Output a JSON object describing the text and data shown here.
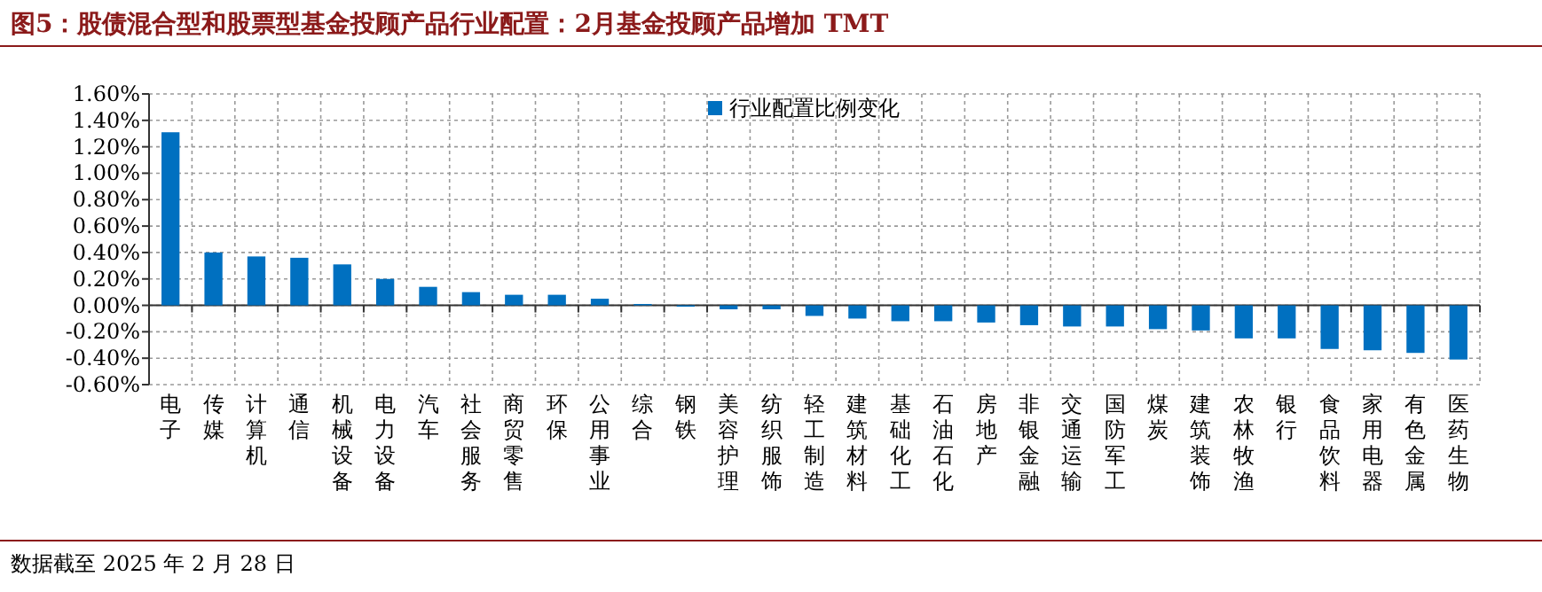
{
  "chart_data": {
    "type": "bar",
    "title": "图5：股债混合型和股票型基金投顾产品行业配置：2月基金投顾产品增加 TMT",
    "categories": [
      "电子",
      "传媒",
      "计算机",
      "通信",
      "机械设备",
      "电力设备",
      "汽车",
      "社会服务",
      "商贸零售",
      "环保",
      "公用事业",
      "综合",
      "钢铁",
      "美容护理",
      "纺织服饰",
      "轻工制造",
      "建筑材料",
      "基础化工",
      "石油石化",
      "房地产",
      "非银金融",
      "交通运输",
      "国防军工",
      "煤炭",
      "建筑装饰",
      "农林牧渔",
      "银行",
      "食品饮料",
      "家用电器",
      "有色金属",
      "医药生物"
    ],
    "series": [
      {
        "name": "行业配置比例变化",
        "color": "#0070c0",
        "values": [
          1.31,
          0.4,
          0.37,
          0.36,
          0.31,
          0.2,
          0.14,
          0.1,
          0.08,
          0.08,
          0.05,
          0.01,
          -0.01,
          -0.03,
          -0.03,
          -0.08,
          -0.1,
          -0.12,
          -0.12,
          -0.13,
          -0.15,
          -0.16,
          -0.16,
          -0.18,
          -0.19,
          -0.25,
          -0.25,
          -0.33,
          -0.34,
          -0.36,
          -0.41
        ]
      }
    ],
    "ylim": [
      -0.6,
      1.6
    ],
    "yticks": [
      {
        "value": -0.6,
        "label": "-0.60%"
      },
      {
        "value": -0.4,
        "label": "-0.40%"
      },
      {
        "value": -0.2,
        "label": "-0.20%"
      },
      {
        "value": 0,
        "label": "0.00%"
      },
      {
        "value": 0.2,
        "label": "0.20%"
      },
      {
        "value": 0.4,
        "label": "0.40%"
      },
      {
        "value": 0.6,
        "label": "0.60%"
      },
      {
        "value": 0.8,
        "label": "0.80%"
      },
      {
        "value": 1.0,
        "label": "1.00%"
      },
      {
        "value": 1.2,
        "label": "1.20%"
      },
      {
        "value": 1.4,
        "label": "1.40%"
      },
      {
        "value": 1.6,
        "label": "1.60%"
      }
    ],
    "grid": true,
    "legend": "top",
    "annotations": [
      "数据截至 2025 年 2 月 28 日"
    ]
  }
}
